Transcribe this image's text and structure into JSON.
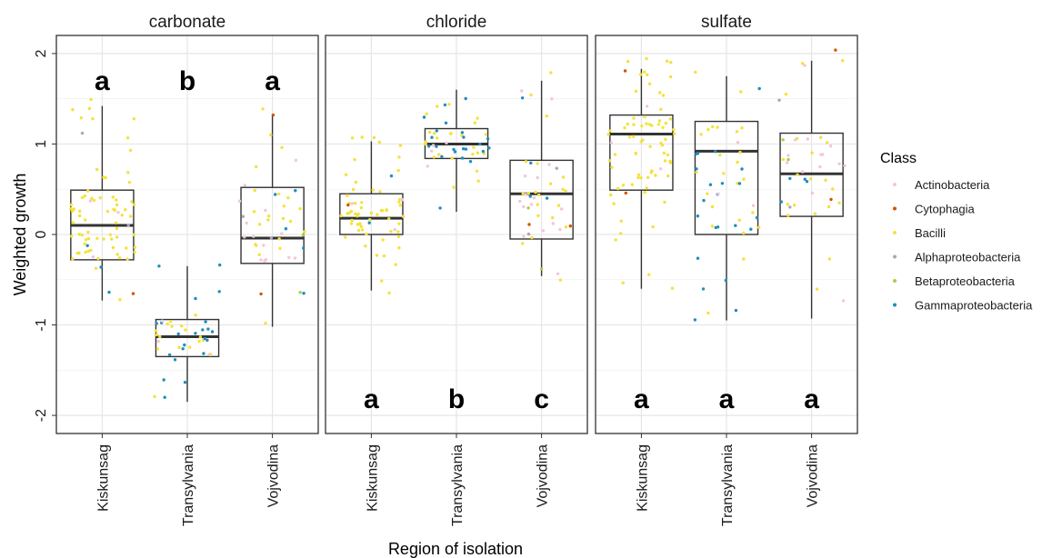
{
  "chart_data": {
    "type": "box",
    "xlabel": "Region of isolation",
    "ylabel": "Weighted growth",
    "ylim": [
      -2.2,
      2.2
    ],
    "yticks": [
      -2,
      -1,
      0,
      1,
      2
    ],
    "categories": [
      "Kiskunsag",
      "Transylvania",
      "Vojvodina"
    ],
    "grid": true,
    "legend": {
      "title": "Class",
      "position": "right",
      "entries": [
        {
          "name": "Actinobacteria",
          "color": "#f2c6dc"
        },
        {
          "name": "Cytophagia",
          "color": "#d35400"
        },
        {
          "name": "Bacilli",
          "color": "#f4e23a"
        },
        {
          "name": "Alphaproteobacteria",
          "color": "#b0a6b0"
        },
        {
          "name": "Betaproteobacteria",
          "color": "#a8cf45"
        },
        {
          "name": "Gammaproteobacteria",
          "color": "#1f8ec0"
        }
      ]
    },
    "panels": [
      {
        "title": "carbonate",
        "letters": [
          "a",
          "b",
          "a"
        ],
        "letter_y": 1.7,
        "boxes": [
          {
            "category": "Kiskunsag",
            "min": -0.73,
            "q1": -0.28,
            "median": 0.1,
            "q3": 0.49,
            "max": 1.42,
            "points": {
              "Bacilli": 70,
              "Gammaproteobacteria": 3,
              "Cytophagia": 1,
              "Alphaproteobacteria": 2,
              "Actinobacteria": 3
            }
          },
          {
            "category": "Transylvania",
            "min": -1.85,
            "q1": -1.35,
            "median": -1.13,
            "q3": -0.94,
            "max": -0.35,
            "points": {
              "Bacilli": 18,
              "Gammaproteobacteria": 22,
              "Actinobacteria": 3
            }
          },
          {
            "category": "Vojvodina",
            "min": -1.02,
            "q1": -0.32,
            "median": -0.04,
            "q3": 0.52,
            "max": 1.33,
            "points": {
              "Bacilli": 22,
              "Actinobacteria": 14,
              "Gammaproteobacteria": 5,
              "Cytophagia": 2,
              "Alphaproteobacteria": 2,
              "Betaproteobacteria": 2
            }
          }
        ]
      },
      {
        "title": "chloride",
        "letters": [
          "a",
          "b",
          "c"
        ],
        "letter_y": -1.82,
        "boxes": [
          {
            "category": "Kiskunsag",
            "min": -0.62,
            "q1": 0.0,
            "median": 0.18,
            "q3": 0.45,
            "max": 1.03,
            "points": {
              "Bacilli": 58,
              "Actinobacteria": 3,
              "Cytophagia": 1,
              "Gammaproteobacteria": 2
            }
          },
          {
            "category": "Transylvania",
            "min": 0.25,
            "q1": 0.84,
            "median": 1.0,
            "q3": 1.17,
            "max": 1.6,
            "points": {
              "Bacilli": 24,
              "Gammaproteobacteria": 22,
              "Actinobacteria": 4
            }
          },
          {
            "category": "Vojvodina",
            "min": -0.46,
            "q1": -0.05,
            "median": 0.45,
            "q3": 0.82,
            "max": 1.7,
            "points": {
              "Bacilli": 22,
              "Actinobacteria": 16,
              "Gammaproteobacteria": 4,
              "Cytophagia": 2,
              "Alphaproteobacteria": 2,
              "Betaproteobacteria": 2
            }
          }
        ]
      },
      {
        "title": "sulfate",
        "letters": [
          "a",
          "a",
          "a"
        ],
        "letter_y": -1.82,
        "boxes": [
          {
            "category": "Kiskunsag",
            "min": -0.6,
            "q1": 0.49,
            "median": 1.11,
            "q3": 1.32,
            "max": 1.83,
            "points": {
              "Bacilli": 72,
              "Actinobacteria": 3,
              "Cytophagia": 2
            }
          },
          {
            "category": "Transylvania",
            "min": -0.95,
            "q1": 0.0,
            "median": 0.92,
            "q3": 1.25,
            "max": 1.75,
            "points": {
              "Bacilli": 24,
              "Gammaproteobacteria": 22,
              "Actinobacteria": 3
            }
          },
          {
            "category": "Vojvodina",
            "min": -0.93,
            "q1": 0.2,
            "median": 0.67,
            "q3": 1.12,
            "max": 1.92,
            "points": {
              "Bacilli": 20,
              "Actinobacteria": 14,
              "Gammaproteobacteria": 4,
              "Cytophagia": 2,
              "Alphaproteobacteria": 2,
              "Betaproteobacteria": 2
            }
          }
        ]
      }
    ]
  }
}
